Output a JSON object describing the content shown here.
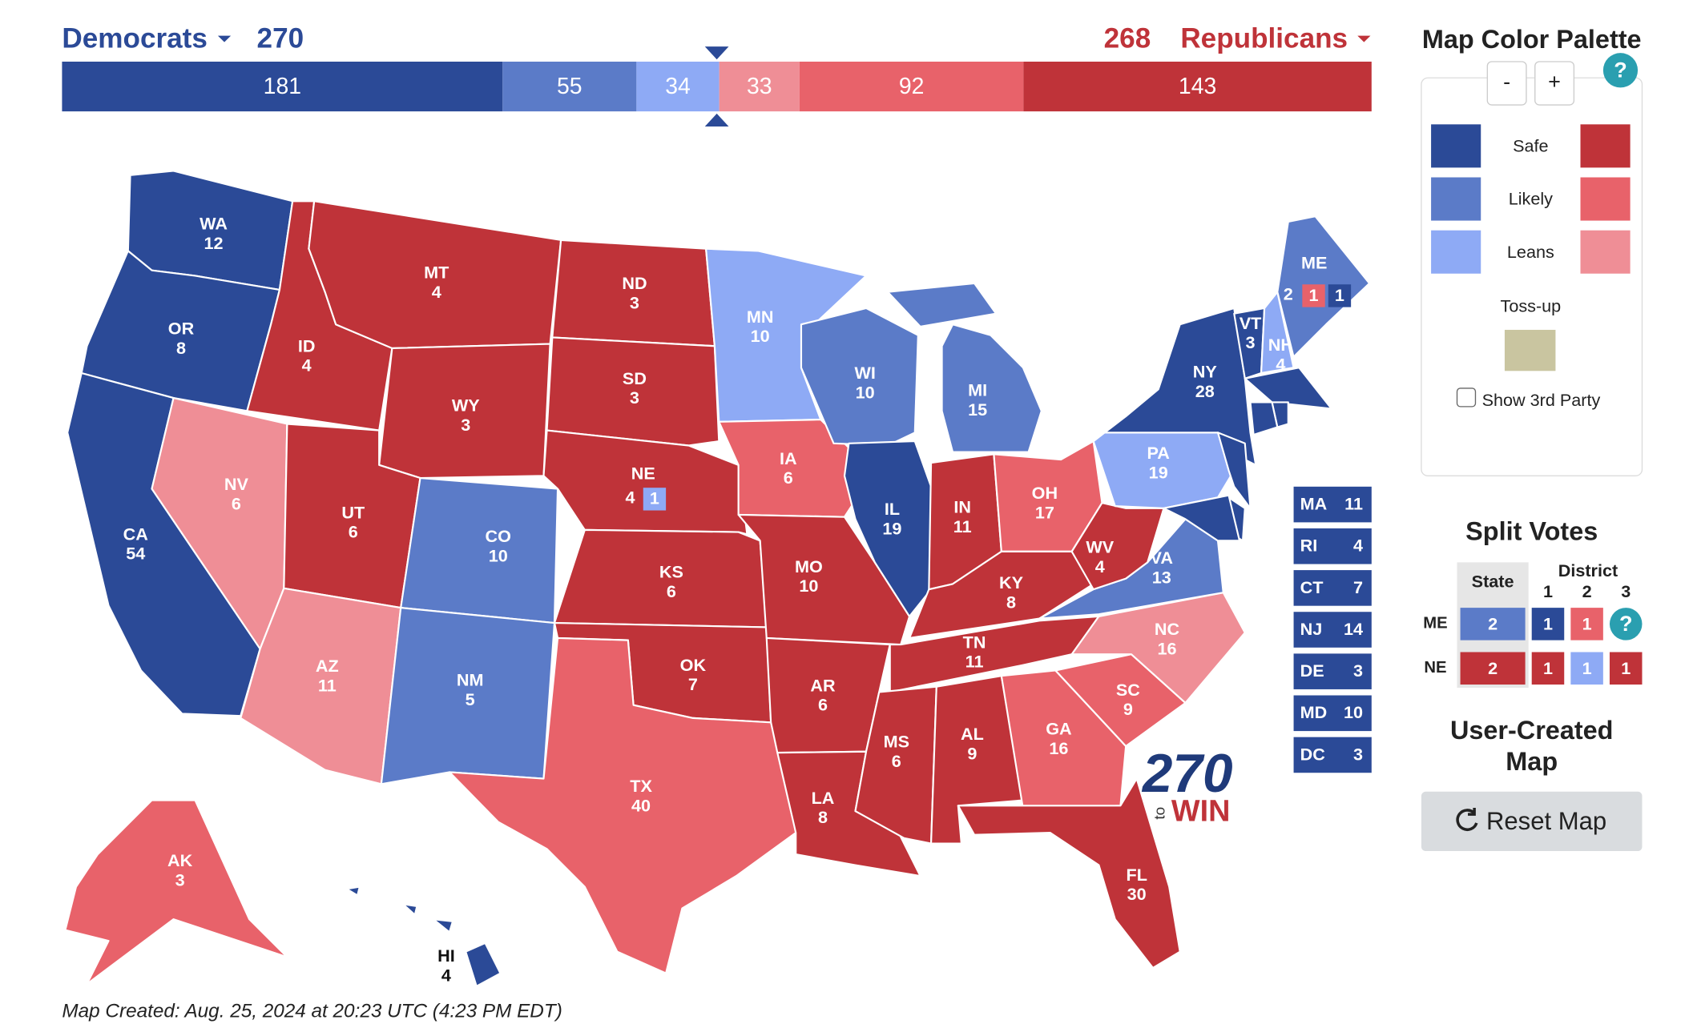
{
  "header": {
    "dem_label": "Democrats",
    "dem_total": 270,
    "rep_total": 268,
    "rep_label": "Republicans"
  },
  "bar": [
    {
      "value": 181,
      "color": "#2b4a97"
    },
    {
      "value": 55,
      "color": "#5b7bc8"
    },
    {
      "value": 34,
      "color": "#8eaaf5"
    },
    {
      "value": 33,
      "color": "#ef8e96"
    },
    {
      "value": 92,
      "color": "#e8626a"
    },
    {
      "value": 143,
      "color": "#bf3339"
    }
  ],
  "states": [
    {
      "abbr": "WA",
      "votes": 12,
      "color": "#2b4a97"
    },
    {
      "abbr": "OR",
      "votes": 8,
      "color": "#2b4a97"
    },
    {
      "abbr": "CA",
      "votes": 54,
      "color": "#2b4a97"
    },
    {
      "abbr": "NV",
      "votes": 6,
      "color": "#ef8e96"
    },
    {
      "abbr": "ID",
      "votes": 4,
      "color": "#bf3339"
    },
    {
      "abbr": "MT",
      "votes": 4,
      "color": "#bf3339"
    },
    {
      "abbr": "WY",
      "votes": 3,
      "color": "#bf3339"
    },
    {
      "abbr": "UT",
      "votes": 6,
      "color": "#bf3339"
    },
    {
      "abbr": "AZ",
      "votes": 11,
      "color": "#ef8e96"
    },
    {
      "abbr": "CO",
      "votes": 10,
      "color": "#5b7bc8"
    },
    {
      "abbr": "NM",
      "votes": 5,
      "color": "#5b7bc8"
    },
    {
      "abbr": "ND",
      "votes": 3,
      "color": "#bf3339"
    },
    {
      "abbr": "SD",
      "votes": 3,
      "color": "#bf3339"
    },
    {
      "abbr": "NE",
      "votes": 4,
      "color": "#bf3339",
      "districts": [
        {
          "votes": 1,
          "color": "#8eaaf5"
        }
      ]
    },
    {
      "abbr": "KS",
      "votes": 6,
      "color": "#bf3339"
    },
    {
      "abbr": "OK",
      "votes": 7,
      "color": "#bf3339"
    },
    {
      "abbr": "TX",
      "votes": 40,
      "color": "#e8626a"
    },
    {
      "abbr": "MN",
      "votes": 10,
      "color": "#8eaaf5"
    },
    {
      "abbr": "IA",
      "votes": 6,
      "color": "#e8626a"
    },
    {
      "abbr": "MO",
      "votes": 10,
      "color": "#bf3339"
    },
    {
      "abbr": "AR",
      "votes": 6,
      "color": "#bf3339"
    },
    {
      "abbr": "LA",
      "votes": 8,
      "color": "#bf3339"
    },
    {
      "abbr": "WI",
      "votes": 10,
      "color": "#5b7bc8"
    },
    {
      "abbr": "IL",
      "votes": 19,
      "color": "#2b4a97"
    },
    {
      "abbr": "MI",
      "votes": 15,
      "color": "#5b7bc8"
    },
    {
      "abbr": "IN",
      "votes": 11,
      "color": "#bf3339"
    },
    {
      "abbr": "OH",
      "votes": 17,
      "color": "#e8626a"
    },
    {
      "abbr": "KY",
      "votes": 8,
      "color": "#bf3339"
    },
    {
      "abbr": "TN",
      "votes": 11,
      "color": "#bf3339"
    },
    {
      "abbr": "MS",
      "votes": 6,
      "color": "#bf3339"
    },
    {
      "abbr": "AL",
      "votes": 9,
      "color": "#bf3339"
    },
    {
      "abbr": "GA",
      "votes": 16,
      "color": "#e8626a"
    },
    {
      "abbr": "FL",
      "votes": 30,
      "color": "#bf3339"
    },
    {
      "abbr": "SC",
      "votes": 9,
      "color": "#e8626a"
    },
    {
      "abbr": "NC",
      "votes": 16,
      "color": "#ef8e96"
    },
    {
      "abbr": "VA",
      "votes": 13,
      "color": "#5b7bc8"
    },
    {
      "abbr": "WV",
      "votes": 4,
      "color": "#bf3339"
    },
    {
      "abbr": "PA",
      "votes": 19,
      "color": "#8eaaf5"
    },
    {
      "abbr": "NY",
      "votes": 28,
      "color": "#2b4a97"
    },
    {
      "abbr": "VT",
      "votes": 3,
      "color": "#2b4a97"
    },
    {
      "abbr": "NH",
      "votes": 4,
      "color": "#8eaaf5"
    },
    {
      "abbr": "ME",
      "votes": 2,
      "color": "#5b7bc8",
      "districts": [
        {
          "votes": 1,
          "color": "#e8626a"
        },
        {
          "votes": 1,
          "color": "#2b4a97"
        }
      ]
    },
    {
      "abbr": "AK",
      "votes": 3,
      "color": "#e8626a"
    },
    {
      "abbr": "HI",
      "votes": 4,
      "color": "#2b4a97"
    },
    {
      "abbr": "MA",
      "votes": 11,
      "color": "#2b4a97"
    },
    {
      "abbr": "RI",
      "votes": 4,
      "color": "#2b4a97"
    },
    {
      "abbr": "CT",
      "votes": 7,
      "color": "#2b4a97"
    },
    {
      "abbr": "NJ",
      "votes": 14,
      "color": "#2b4a97"
    },
    {
      "abbr": "DE",
      "votes": 3,
      "color": "#2b4a97"
    },
    {
      "abbr": "MD",
      "votes": 10,
      "color": "#2b4a97"
    },
    {
      "abbr": "DC",
      "votes": 3,
      "color": "#2b4a97"
    }
  ],
  "logo": {
    "number": "270",
    "to": "to",
    "win": "WIN"
  },
  "footer": "Map Created: Aug. 25, 2024 at 20:23 UTC (4:23 PM EDT)",
  "palette": {
    "title": "Map Color Palette",
    "minus": "-",
    "plus": "+",
    "help": "?",
    "rows": [
      {
        "label": "Safe",
        "dem": "#2b4a97",
        "rep": "#bf3339"
      },
      {
        "label": "Likely",
        "dem": "#5b7bc8",
        "rep": "#e8626a"
      },
      {
        "label": "Leans",
        "dem": "#8eaaf5",
        "rep": "#ef8e96"
      }
    ],
    "tossup_label": "Toss-up",
    "tossup_color": "#c9c5a0",
    "third_party_label": "Show 3rd Party"
  },
  "split_votes": {
    "title": "Split Votes",
    "state_header": "State",
    "district_header": "District",
    "district_numbers": [
      1,
      2,
      3
    ],
    "help": "?",
    "rows": [
      {
        "state": "ME",
        "state_votes": 2,
        "state_color": "#5b7bc8",
        "districts": [
          {
            "votes": 1,
            "color": "#2b4a97"
          },
          {
            "votes": 1,
            "color": "#e8626a"
          }
        ]
      },
      {
        "state": "NE",
        "state_votes": 2,
        "state_color": "#bf3339",
        "districts": [
          {
            "votes": 1,
            "color": "#bf3339"
          },
          {
            "votes": 1,
            "color": "#8eaaf5"
          },
          {
            "votes": 1,
            "color": "#bf3339"
          }
        ]
      }
    ]
  },
  "user_map": {
    "title_line1": "User-Created",
    "title_line2": "Map",
    "reset_label": "Reset Map"
  }
}
